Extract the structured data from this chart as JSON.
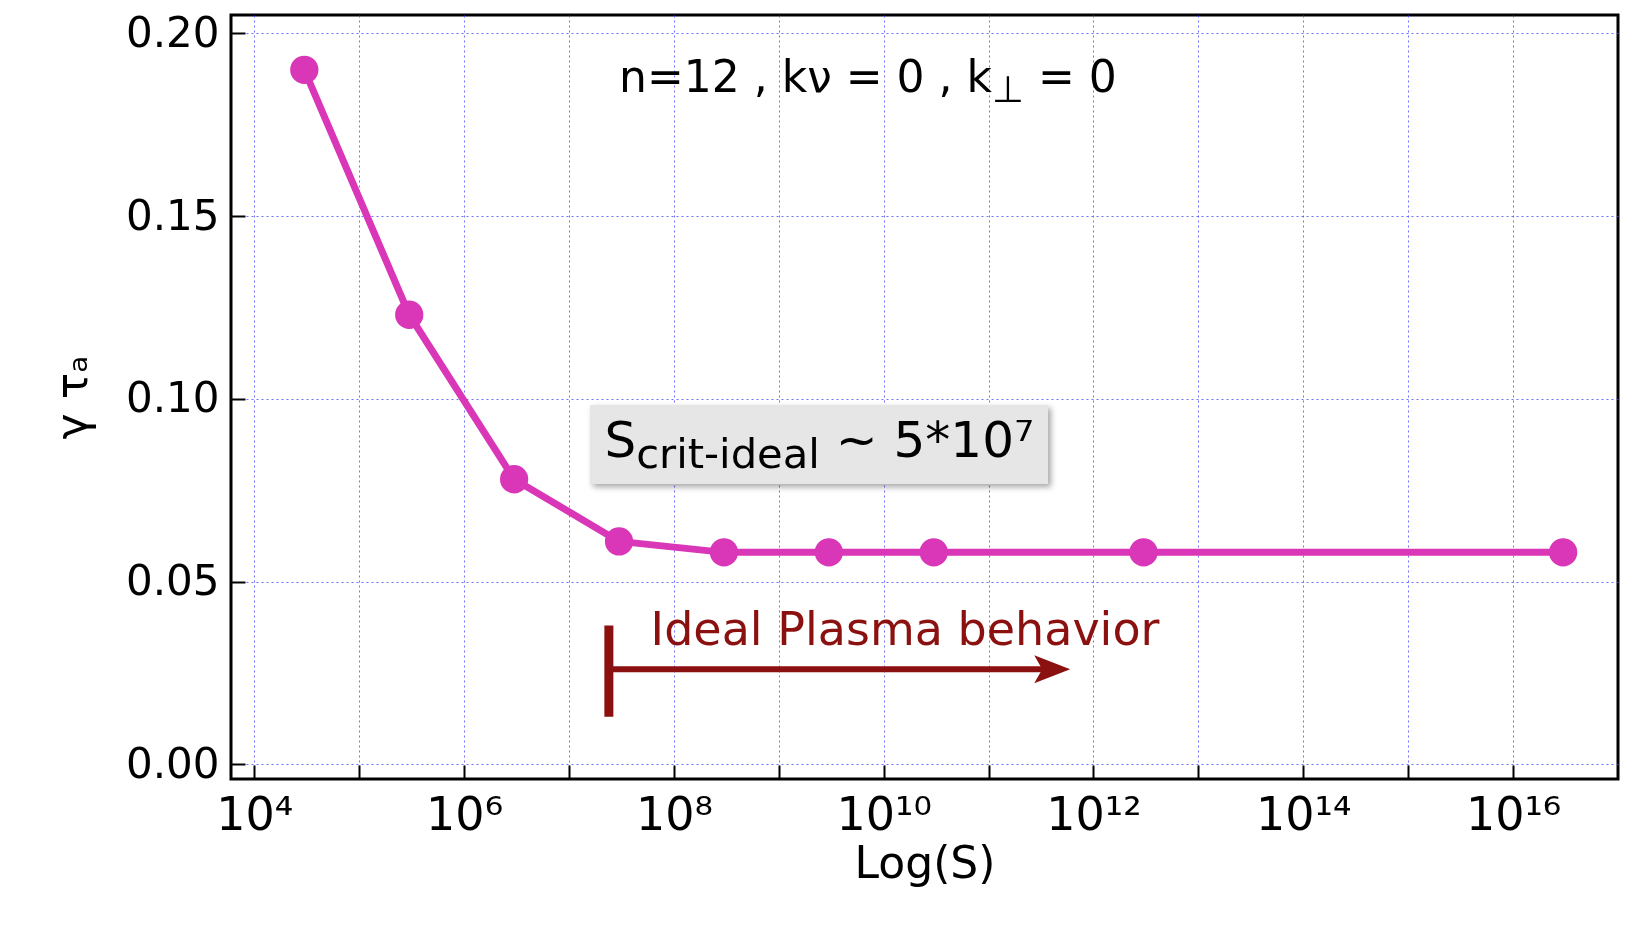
{
  "chart_data": {
    "type": "line",
    "xlabel": "Log(S)",
    "ylabel": "γ τₐ",
    "log": "x",
    "x": [
      30000,
      300000,
      3000000,
      30000000,
      300000000,
      3000000000,
      30000000000,
      3000000000000,
      30000000000000000
    ],
    "series": [
      {
        "color": "#d936b8",
        "values": [
          0.19,
          0.123,
          0.078,
          0.061,
          0.058,
          0.058,
          0.058,
          0.058,
          0.058
        ]
      }
    ],
    "xlim": [
      6000,
      1e+17
    ],
    "xticks": [
      {
        "value": 10000,
        "label": "10⁴"
      },
      {
        "value": 100000,
        "label": null
      },
      {
        "value": 1000000,
        "label": "10⁶"
      },
      {
        "value": 10000000,
        "label": null
      },
      {
        "value": 100000000,
        "label": "10⁸"
      },
      {
        "value": 1000000000,
        "label": null
      },
      {
        "value": 10000000000,
        "label": "10¹⁰"
      },
      {
        "value": 100000000000,
        "label": null
      },
      {
        "value": 1000000000000,
        "label": "10¹²"
      },
      {
        "value": 10000000000000,
        "label": null
      },
      {
        "value": 100000000000000,
        "label": "10¹⁴"
      },
      {
        "value": 1000000000000000,
        "label": null
      },
      {
        "value": 10000000000000000,
        "label": "10¹⁶"
      }
    ],
    "ylim": [
      -0.004,
      0.205
    ],
    "yticks": [
      {
        "value": 0,
        "label": "0.00"
      },
      {
        "value": 0.05,
        "label": "0.05"
      },
      {
        "value": 0.1,
        "label": "0.10"
      },
      {
        "value": 0.15,
        "label": "0.15"
      },
      {
        "value": 0.2,
        "label": "0.20"
      }
    ],
    "grid": true,
    "marker": "circle",
    "line_style": "solid",
    "annotations": [
      "n=12 , kν = 0 , k$_{⊥}$ = 0",
      "S$_{crit-ideal}$ ~ 5*10⁷",
      "Ideal Plasma behavior"
    ]
  }
}
